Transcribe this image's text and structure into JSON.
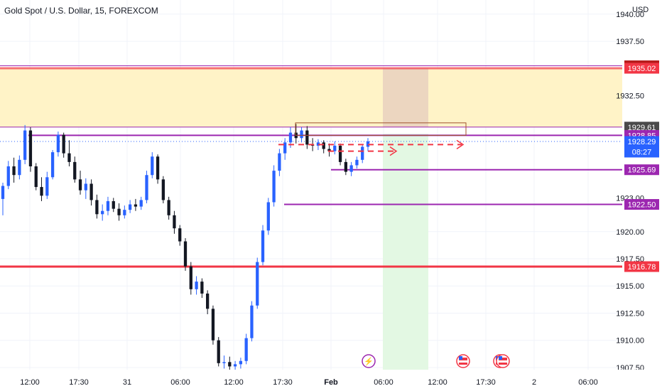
{
  "header": {
    "symbol_title": "Gold Spot / U.S. Dollar, 15, FOREXCOM",
    "currency": "USD"
  },
  "colors": {
    "background": "#ffffff",
    "candle": "#131722",
    "bull": "#2962ff",
    "grid": "#f0f3fa",
    "axis_text": "#131722",
    "supply_zone": "#fff3c7",
    "red_line": "#f23645",
    "purple_line": "#9c27b0",
    "dark_red_label": "#b71c1c",
    "blue_label": "#2962ff",
    "dark_label": "#4a4a4a",
    "green_zone": "#e3f8e3",
    "brown_zone": "#ecd6c0",
    "box_outline": "#a0522d"
  },
  "chart_data": {
    "type": "candlestick",
    "title": "Gold Spot / U.S. Dollar, 15, FOREXCOM",
    "y_axis": {
      "ticks": [
        "1940.00",
        "1937.50",
        "1932.50",
        "1920.00",
        "1917.50",
        "1915.00",
        "1912.50",
        "1910.00",
        "1907.50"
      ],
      "tick_values": [
        1940.0,
        1937.5,
        1932.5,
        1920.0,
        1917.5,
        1915.0,
        1912.5,
        1910.0,
        1907.5
      ],
      "range": [
        1907.3,
        1941.3
      ]
    },
    "x_axis": {
      "ticks": [
        "12:00",
        "17:30",
        "31",
        "06:00",
        "12:00",
        "17:30",
        "Feb",
        "06:00",
        "12:00",
        "17:30",
        "2",
        "06:00"
      ],
      "bold": [
        "Feb"
      ]
    },
    "price_labels": [
      {
        "value": "1935.25",
        "price": 1935.25,
        "style": "dark-red"
      },
      {
        "value": "1935.02",
        "price": 1935.02,
        "style": "red"
      },
      {
        "value": "1929.61",
        "price": 1929.61,
        "style": "dark"
      },
      {
        "value": "1928.85",
        "price": 1928.85,
        "style": "purple"
      },
      {
        "value": "1928.29",
        "price": 1928.29,
        "style": "blue",
        "sub": "08:27"
      },
      {
        "value": "1925.69",
        "price": 1925.69,
        "style": "purple"
      },
      {
        "value": "1922.50",
        "price": 1922.5,
        "style": "purple"
      },
      {
        "value": "1916.78",
        "price": 1916.78,
        "style": "red"
      }
    ],
    "partial_tick_label": "1923.00",
    "horizontal_levels": [
      1935.25,
      1935.02,
      1929.61,
      1928.85,
      1925.69,
      1922.5,
      1916.78
    ],
    "supply_zone": [
      1929.61,
      1935.02
    ],
    "current_price": 1928.29,
    "candles_ohlc": [
      [
        1923.0,
        1924.5,
        1921.5,
        1924.2
      ],
      [
        1924.2,
        1926.5,
        1923.9,
        1926.0
      ],
      [
        1926.0,
        1926.8,
        1924.5,
        1925.2
      ],
      [
        1925.2,
        1927.0,
        1924.8,
        1926.6
      ],
      [
        1926.6,
        1929.8,
        1926.2,
        1929.3
      ],
      [
        1929.3,
        1929.6,
        1925.5,
        1926.0
      ],
      [
        1926.0,
        1926.3,
        1923.8,
        1924.1
      ],
      [
        1924.1,
        1925.0,
        1922.8,
        1923.3
      ],
      [
        1923.3,
        1925.5,
        1923.0,
        1925.0
      ],
      [
        1925.0,
        1927.5,
        1924.8,
        1927.3
      ],
      [
        1927.3,
        1929.2,
        1926.9,
        1928.9
      ],
      [
        1928.9,
        1929.1,
        1926.8,
        1927.2
      ],
      [
        1927.2,
        1928.4,
        1926.0,
        1926.4
      ],
      [
        1926.4,
        1926.9,
        1924.5,
        1924.8
      ],
      [
        1924.8,
        1925.6,
        1923.4,
        1923.8
      ],
      [
        1923.8,
        1924.9,
        1923.0,
        1924.4
      ],
      [
        1924.4,
        1924.8,
        1922.4,
        1922.9
      ],
      [
        1922.9,
        1923.4,
        1921.2,
        1921.6
      ],
      [
        1921.6,
        1922.5,
        1921.0,
        1921.9
      ],
      [
        1921.9,
        1923.2,
        1921.5,
        1922.8
      ],
      [
        1922.8,
        1923.1,
        1921.8,
        1922.1
      ],
      [
        1922.1,
        1922.6,
        1921.0,
        1921.5
      ],
      [
        1921.5,
        1922.4,
        1921.2,
        1922.0
      ],
      [
        1922.0,
        1922.9,
        1921.7,
        1922.5
      ],
      [
        1922.5,
        1923.0,
        1921.9,
        1922.3
      ],
      [
        1922.3,
        1923.2,
        1922.0,
        1922.9
      ],
      [
        1922.9,
        1925.6,
        1922.6,
        1925.2
      ],
      [
        1925.2,
        1927.3,
        1924.9,
        1926.9
      ],
      [
        1926.9,
        1927.1,
        1924.4,
        1924.8
      ],
      [
        1924.8,
        1925.1,
        1922.6,
        1922.9
      ],
      [
        1922.9,
        1923.2,
        1921.1,
        1921.5
      ],
      [
        1921.5,
        1921.9,
        1919.8,
        1920.3
      ],
      [
        1920.3,
        1920.6,
        1918.7,
        1919.1
      ],
      [
        1919.1,
        1919.4,
        1916.4,
        1916.8
      ],
      [
        1916.8,
        1917.2,
        1914.2,
        1914.7
      ],
      [
        1914.7,
        1915.9,
        1914.2,
        1915.4
      ],
      [
        1915.4,
        1915.7,
        1913.9,
        1914.3
      ],
      [
        1914.3,
        1914.6,
        1912.4,
        1912.9
      ],
      [
        1912.9,
        1913.2,
        1909.6,
        1910.0
      ],
      [
        1910.0,
        1910.3,
        1907.6,
        1907.9
      ],
      [
        1907.9,
        1908.6,
        1907.4,
        1908.0
      ],
      [
        1908.0,
        1908.5,
        1907.3,
        1907.6
      ],
      [
        1907.6,
        1908.1,
        1907.3,
        1907.8
      ],
      [
        1907.8,
        1908.4,
        1907.4,
        1908.1
      ],
      [
        1908.1,
        1910.6,
        1907.8,
        1910.2
      ],
      [
        1910.2,
        1913.6,
        1909.9,
        1913.2
      ],
      [
        1913.2,
        1917.6,
        1912.9,
        1917.2
      ],
      [
        1917.2,
        1920.6,
        1916.9,
        1920.1
      ],
      [
        1920.1,
        1923.1,
        1919.7,
        1922.7
      ],
      [
        1922.7,
        1926.1,
        1922.3,
        1925.6
      ],
      [
        1925.6,
        1927.6,
        1925.1,
        1927.2
      ],
      [
        1927.2,
        1928.6,
        1926.6,
        1928.2
      ],
      [
        1928.2,
        1929.6,
        1927.7,
        1929.1
      ],
      [
        1929.1,
        1929.9,
        1928.1,
        1928.6
      ],
      [
        1928.6,
        1929.6,
        1928.2,
        1929.3
      ],
      [
        1929.3,
        1929.7,
        1927.6,
        1928.0
      ],
      [
        1928.0,
        1928.6,
        1927.4,
        1927.9
      ],
      [
        1927.9,
        1928.5,
        1927.5,
        1928.2
      ],
      [
        1928.2,
        1928.4,
        1927.2,
        1927.6
      ],
      [
        1927.6,
        1928.1,
        1926.9,
        1927.4
      ],
      [
        1927.4,
        1928.3,
        1927.1,
        1927.9
      ],
      [
        1927.9,
        1928.1,
        1926.1,
        1926.4
      ],
      [
        1926.4,
        1926.7,
        1925.2,
        1925.5
      ],
      [
        1925.5,
        1926.4,
        1925.1,
        1926.1
      ],
      [
        1926.1,
        1926.9,
        1925.8,
        1926.6
      ],
      [
        1926.6,
        1928.0,
        1926.3,
        1927.8
      ],
      [
        1927.8,
        1928.6,
        1927.4,
        1928.3
      ]
    ]
  }
}
